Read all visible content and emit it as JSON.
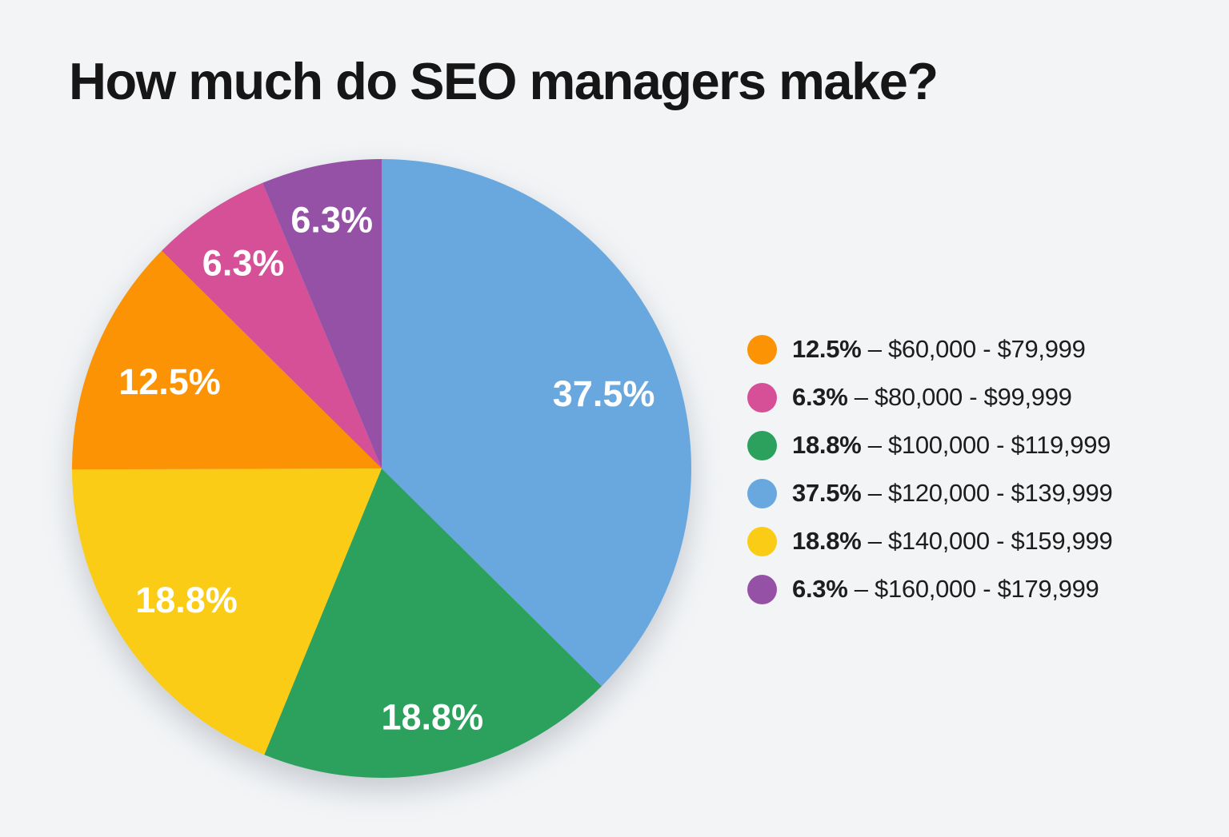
{
  "page": {
    "background_color": "#f2f4f6",
    "title_color": "#161617",
    "legend_text_color": "#1d1d1f",
    "pie_label_color": "#ffffff"
  },
  "chart_data": {
    "type": "pie",
    "title": "How much do SEO managers make?",
    "direction": "clockwise",
    "start_angle_deg": 0,
    "legend_position": "right",
    "legend_separator": "–",
    "slices": [
      {
        "range": "$120,000 - $139,999",
        "value": 37.5,
        "pct_label": "37.5%",
        "color": "#69A8DF"
      },
      {
        "range": "$100,000 - $119,999",
        "value": 18.8,
        "pct_label": "18.8%",
        "color": "#2BA15D"
      },
      {
        "range": "$140,000 - $159,999",
        "value": 18.8,
        "pct_label": "18.8%",
        "color": "#FACC15"
      },
      {
        "range": "$60,000 - $79,999",
        "value": 12.5,
        "pct_label": "12.5%",
        "color": "#FB9304"
      },
      {
        "range": "$80,000 - $99,999",
        "value": 6.3,
        "pct_label": "6.3%",
        "color": "#D55097"
      },
      {
        "range": "$160,000 - $179,999",
        "value": 6.3,
        "pct_label": "6.3%",
        "color": "#9551A6"
      }
    ],
    "legend": [
      {
        "pct": "12.5%",
        "range": "$60,000 - $79,999",
        "color": "#FB9304"
      },
      {
        "pct": "6.3%",
        "range": "$80,000 - $99,999",
        "color": "#D55097"
      },
      {
        "pct": "18.8%",
        "range": "$100,000 - $119,999",
        "color": "#2BA15D"
      },
      {
        "pct": "37.5%",
        "range": "$120,000 - $139,999",
        "color": "#69A8DF"
      },
      {
        "pct": "18.8%",
        "range": "$140,000 - $159,999",
        "color": "#FACC15"
      },
      {
        "pct": "6.3%",
        "range": "$160,000 - $179,999",
        "color": "#9551A6"
      }
    ]
  }
}
